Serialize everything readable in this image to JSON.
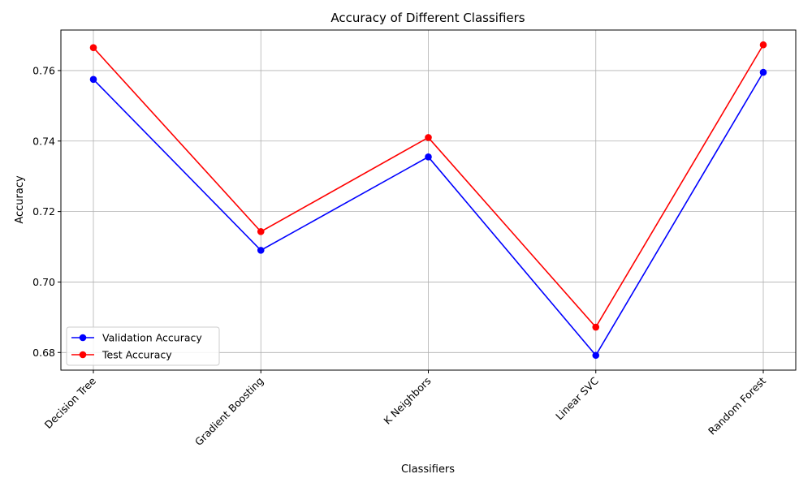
{
  "chart_data": {
    "type": "line",
    "title": "Accuracy of Different Classifiers",
    "xlabel": "Classifiers",
    "ylabel": "Accuracy",
    "categories": [
      "Decision Tree",
      "Gradient Boosting",
      "K Neighbors",
      "Linear SVC",
      "Random Forest"
    ],
    "series": [
      {
        "name": "Validation Accuracy",
        "color": "#0000ff",
        "values": [
          0.7575,
          0.709,
          0.7355,
          0.6792,
          0.7595
        ]
      },
      {
        "name": "Test Accuracy",
        "color": "#ff0000",
        "values": [
          0.7665,
          0.7143,
          0.741,
          0.6872,
          0.7673
        ]
      }
    ],
    "ylim": [
      0.675,
      0.7715
    ],
    "yticks": [
      0.68,
      0.7,
      0.72,
      0.74,
      0.76
    ],
    "ytick_labels": [
      "0.68",
      "0.70",
      "0.72",
      "0.74",
      "0.76"
    ],
    "grid": true,
    "legend_position": "lower-left"
  }
}
